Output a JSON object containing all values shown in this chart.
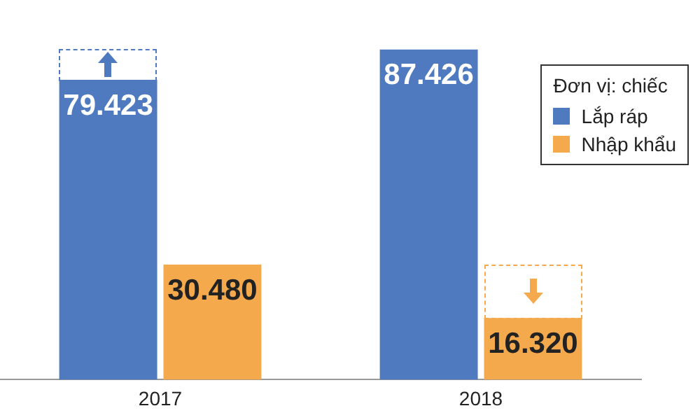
{
  "chart_data": {
    "type": "bar",
    "categories": [
      "2017",
      "2018"
    ],
    "legend_title": "Đơn vị: chiếc",
    "legend": "top right",
    "data_labels": false,
    "series": [
      {
        "name": "Lắp ráp",
        "color": "#4f7abf",
        "values": [
          79423,
          87426
        ],
        "value_labels": [
          "79.423",
          "87.426"
        ]
      },
      {
        "name": "Nhập khẩu",
        "color": "#f5a94d",
        "values": [
          30480,
          16320
        ],
        "value_labels": [
          "30.480",
          "16.320"
        ]
      }
    ]
  }
}
